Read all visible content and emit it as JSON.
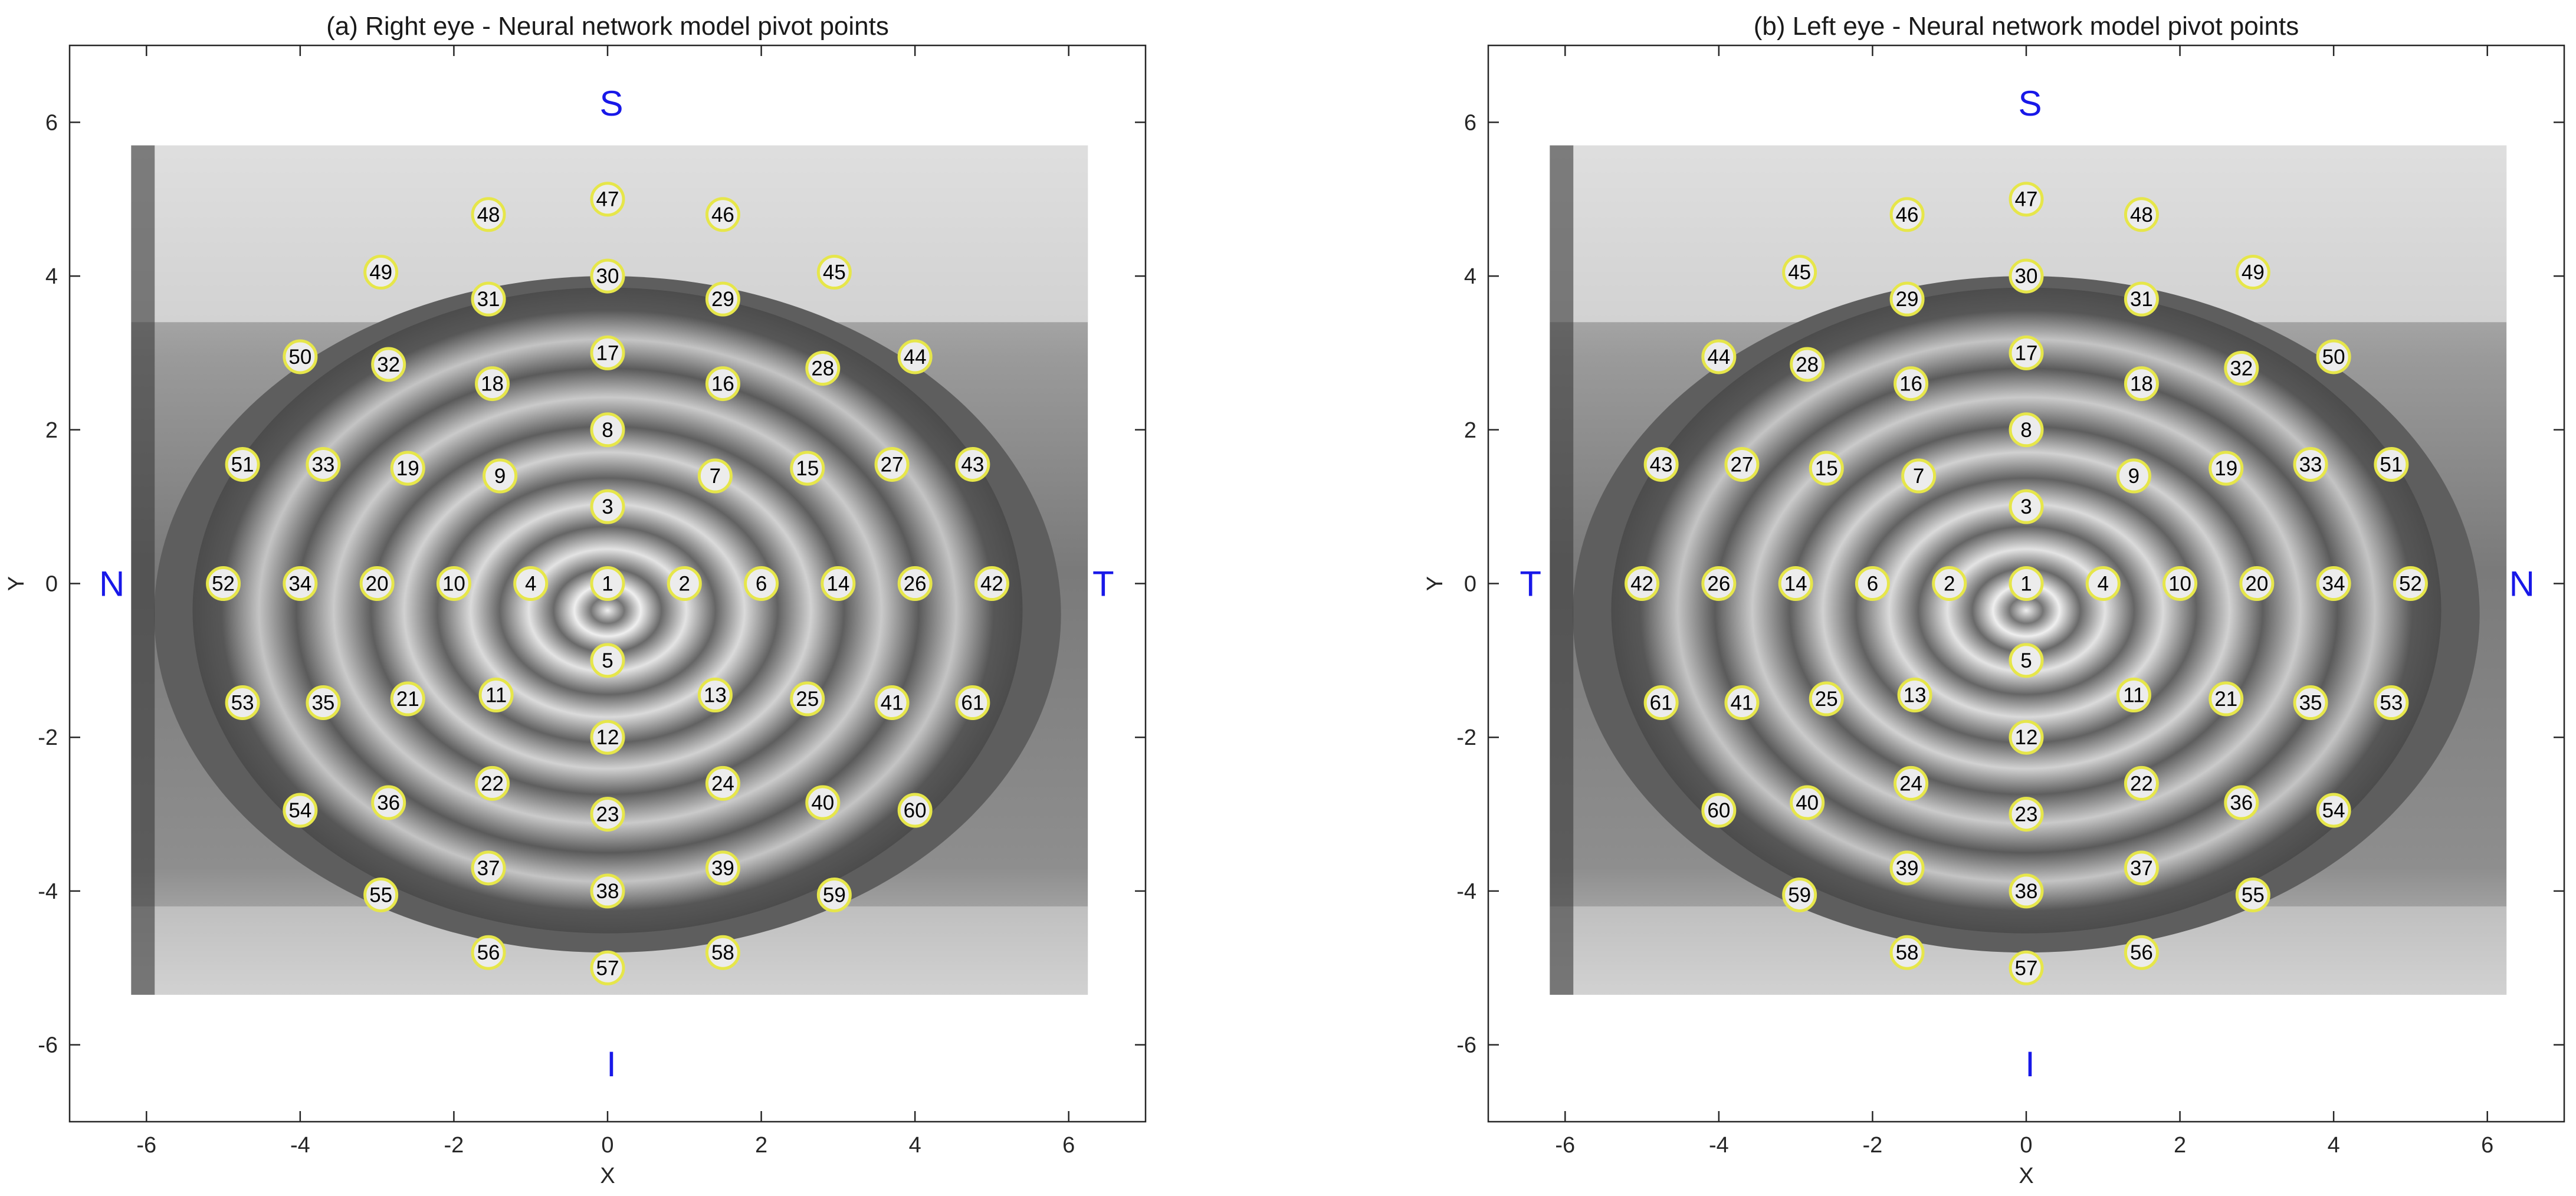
{
  "chart_data": [
    {
      "type": "scatter",
      "title": "(a) Right eye - Neural network model pivot points",
      "xlabel": "X",
      "ylabel": "Y",
      "xlim": [
        -7,
        7
      ],
      "ylim": [
        -7,
        7
      ],
      "xticks": [
        -6,
        -4,
        -2,
        0,
        2,
        4,
        6
      ],
      "yticks": [
        -6,
        -4,
        -2,
        0,
        2,
        4,
        6
      ],
      "grid": false,
      "background": "grayscale eye image with concentric placido rings",
      "marker_color": "#e6e64a",
      "orientation_labels": [
        {
          "text": "S",
          "x": 0.05,
          "y": 6.25
        },
        {
          "text": "I",
          "x": 0.05,
          "y": -6.25
        },
        {
          "text": "N",
          "x": -6.45,
          "y": 0
        },
        {
          "text": "T",
          "x": 6.45,
          "y": 0
        }
      ],
      "points": [
        {
          "label": "1",
          "x": 0,
          "y": 0
        },
        {
          "label": "2",
          "x": 1,
          "y": 0
        },
        {
          "label": "3",
          "x": 0,
          "y": 1
        },
        {
          "label": "4",
          "x": -1,
          "y": 0
        },
        {
          "label": "5",
          "x": 0,
          "y": -1
        },
        {
          "label": "6",
          "x": 2,
          "y": 0
        },
        {
          "label": "7",
          "x": 1.4,
          "y": 1.4
        },
        {
          "label": "8",
          "x": 0,
          "y": 2
        },
        {
          "label": "9",
          "x": -1.4,
          "y": 1.4
        },
        {
          "label": "10",
          "x": -2,
          "y": 0
        },
        {
          "label": "11",
          "x": -1.45,
          "y": -1.45
        },
        {
          "label": "12",
          "x": 0,
          "y": -2
        },
        {
          "label": "13",
          "x": 1.4,
          "y": -1.45
        },
        {
          "label": "14",
          "x": 3,
          "y": 0
        },
        {
          "label": "15",
          "x": 2.6,
          "y": 1.5
        },
        {
          "label": "16",
          "x": 1.5,
          "y": 2.6
        },
        {
          "label": "17",
          "x": 0,
          "y": 3
        },
        {
          "label": "18",
          "x": -1.5,
          "y": 2.6
        },
        {
          "label": "19",
          "x": -2.6,
          "y": 1.5
        },
        {
          "label": "20",
          "x": -3,
          "y": 0
        },
        {
          "label": "21",
          "x": -2.6,
          "y": -1.5
        },
        {
          "label": "22",
          "x": -1.5,
          "y": -2.6
        },
        {
          "label": "23",
          "x": 0,
          "y": -3
        },
        {
          "label": "24",
          "x": 1.5,
          "y": -2.6
        },
        {
          "label": "25",
          "x": 2.6,
          "y": -1.5
        },
        {
          "label": "26",
          "x": 4,
          "y": 0
        },
        {
          "label": "27",
          "x": 3.7,
          "y": 1.55
        },
        {
          "label": "28",
          "x": 2.8,
          "y": 2.8
        },
        {
          "label": "29",
          "x": 1.5,
          "y": 3.7
        },
        {
          "label": "30",
          "x": 0,
          "y": 4
        },
        {
          "label": "31",
          "x": -1.55,
          "y": 3.7
        },
        {
          "label": "32",
          "x": -2.85,
          "y": 2.85
        },
        {
          "label": "33",
          "x": -3.7,
          "y": 1.55
        },
        {
          "label": "34",
          "x": -4,
          "y": 0
        },
        {
          "label": "35",
          "x": -3.7,
          "y": -1.55
        },
        {
          "label": "36",
          "x": -2.85,
          "y": -2.85
        },
        {
          "label": "37",
          "x": -1.55,
          "y": -3.7
        },
        {
          "label": "38",
          "x": 0,
          "y": -4
        },
        {
          "label": "39",
          "x": 1.5,
          "y": -3.7
        },
        {
          "label": "40",
          "x": 2.8,
          "y": -2.85
        },
        {
          "label": "41",
          "x": 3.7,
          "y": -1.55
        },
        {
          "label": "42",
          "x": 5,
          "y": 0
        },
        {
          "label": "43",
          "x": 4.75,
          "y": 1.55
        },
        {
          "label": "44",
          "x": 4,
          "y": 2.95
        },
        {
          "label": "45",
          "x": 2.95,
          "y": 4.05
        },
        {
          "label": "46",
          "x": 1.5,
          "y": 4.8
        },
        {
          "label": "47",
          "x": 0,
          "y": 5
        },
        {
          "label": "48",
          "x": -1.55,
          "y": 4.8
        },
        {
          "label": "49",
          "x": -2.95,
          "y": 4.05
        },
        {
          "label": "50",
          "x": -4,
          "y": 2.95
        },
        {
          "label": "51",
          "x": -4.75,
          "y": 1.55
        },
        {
          "label": "52",
          "x": -5,
          "y": 0
        },
        {
          "label": "53",
          "x": -4.75,
          "y": -1.55
        },
        {
          "label": "54",
          "x": -4,
          "y": -2.95
        },
        {
          "label": "55",
          "x": -2.95,
          "y": -4.05
        },
        {
          "label": "56",
          "x": -1.55,
          "y": -4.8
        },
        {
          "label": "57",
          "x": 0,
          "y": -5
        },
        {
          "label": "58",
          "x": 1.5,
          "y": -4.8
        },
        {
          "label": "59",
          "x": 2.95,
          "y": -4.05
        },
        {
          "label": "60",
          "x": 4,
          "y": -2.95
        },
        {
          "label": "61",
          "x": 4.75,
          "y": -1.55
        }
      ]
    },
    {
      "type": "scatter",
      "title": "(b) Left eye - Neural network model pivot points",
      "xlabel": "X",
      "ylabel": "Y",
      "xlim": [
        -7,
        7
      ],
      "ylim": [
        -7,
        7
      ],
      "xticks": [
        -6,
        -4,
        -2,
        0,
        2,
        4,
        6
      ],
      "yticks": [
        -6,
        -4,
        -2,
        0,
        2,
        4,
        6
      ],
      "grid": false,
      "background": "grayscale eye image with concentric placido rings",
      "marker_color": "#e6e64a",
      "orientation_labels": [
        {
          "text": "S",
          "x": 0.05,
          "y": 6.25
        },
        {
          "text": "I",
          "x": 0.05,
          "y": -6.25
        },
        {
          "text": "T",
          "x": -6.45,
          "y": 0
        },
        {
          "text": "N",
          "x": 6.45,
          "y": 0
        }
      ],
      "points": [
        {
          "label": "1",
          "x": 0,
          "y": 0
        },
        {
          "label": "2",
          "x": -1,
          "y": 0
        },
        {
          "label": "3",
          "x": 0,
          "y": 1
        },
        {
          "label": "4",
          "x": 1,
          "y": 0
        },
        {
          "label": "5",
          "x": 0,
          "y": -1
        },
        {
          "label": "6",
          "x": -2,
          "y": 0
        },
        {
          "label": "7",
          "x": -1.4,
          "y": 1.4
        },
        {
          "label": "8",
          "x": 0,
          "y": 2
        },
        {
          "label": "9",
          "x": 1.4,
          "y": 1.4
        },
        {
          "label": "10",
          "x": 2,
          "y": 0
        },
        {
          "label": "11",
          "x": 1.4,
          "y": -1.45
        },
        {
          "label": "12",
          "x": 0,
          "y": -2
        },
        {
          "label": "13",
          "x": -1.45,
          "y": -1.45
        },
        {
          "label": "14",
          "x": -3,
          "y": 0
        },
        {
          "label": "15",
          "x": -2.6,
          "y": 1.5
        },
        {
          "label": "16",
          "x": -1.5,
          "y": 2.6
        },
        {
          "label": "17",
          "x": 0,
          "y": 3
        },
        {
          "label": "18",
          "x": 1.5,
          "y": 2.6
        },
        {
          "label": "19",
          "x": 2.6,
          "y": 1.5
        },
        {
          "label": "20",
          "x": 3,
          "y": 0
        },
        {
          "label": "21",
          "x": 2.6,
          "y": -1.5
        },
        {
          "label": "22",
          "x": 1.5,
          "y": -2.6
        },
        {
          "label": "23",
          "x": 0,
          "y": -3
        },
        {
          "label": "24",
          "x": -1.5,
          "y": -2.6
        },
        {
          "label": "25",
          "x": -2.6,
          "y": -1.5
        },
        {
          "label": "26",
          "x": -4,
          "y": 0
        },
        {
          "label": "27",
          "x": -3.7,
          "y": 1.55
        },
        {
          "label": "28",
          "x": -2.85,
          "y": 2.85
        },
        {
          "label": "29",
          "x": -1.55,
          "y": 3.7
        },
        {
          "label": "30",
          "x": 0,
          "y": 4
        },
        {
          "label": "31",
          "x": 1.5,
          "y": 3.7
        },
        {
          "label": "32",
          "x": 2.8,
          "y": 2.8
        },
        {
          "label": "33",
          "x": 3.7,
          "y": 1.55
        },
        {
          "label": "34",
          "x": 4,
          "y": 0
        },
        {
          "label": "35",
          "x": 3.7,
          "y": -1.55
        },
        {
          "label": "36",
          "x": 2.8,
          "y": -2.85
        },
        {
          "label": "37",
          "x": 1.5,
          "y": -3.7
        },
        {
          "label": "38",
          "x": 0,
          "y": -4
        },
        {
          "label": "39",
          "x": -1.55,
          "y": -3.7
        },
        {
          "label": "40",
          "x": -2.85,
          "y": -2.85
        },
        {
          "label": "41",
          "x": -3.7,
          "y": -1.55
        },
        {
          "label": "42",
          "x": -5,
          "y": 0
        },
        {
          "label": "43",
          "x": -4.75,
          "y": 1.55
        },
        {
          "label": "44",
          "x": -4,
          "y": 2.95
        },
        {
          "label": "45",
          "x": -2.95,
          "y": 4.05
        },
        {
          "label": "46",
          "x": -1.55,
          "y": 4.8
        },
        {
          "label": "47",
          "x": 0,
          "y": 5
        },
        {
          "label": "48",
          "x": 1.5,
          "y": 4.8
        },
        {
          "label": "49",
          "x": 2.95,
          "y": 4.05
        },
        {
          "label": "50",
          "x": 4,
          "y": 2.95
        },
        {
          "label": "51",
          "x": 4.75,
          "y": 1.55
        },
        {
          "label": "52",
          "x": 5,
          "y": 0
        },
        {
          "label": "53",
          "x": 4.75,
          "y": -1.55
        },
        {
          "label": "54",
          "x": 4,
          "y": -2.95
        },
        {
          "label": "55",
          "x": 2.95,
          "y": -4.05
        },
        {
          "label": "56",
          "x": 1.5,
          "y": -4.8
        },
        {
          "label": "57",
          "x": 0,
          "y": -5
        },
        {
          "label": "58",
          "x": -1.55,
          "y": -4.8
        },
        {
          "label": "59",
          "x": -2.95,
          "y": -4.05
        },
        {
          "label": "60",
          "x": -4,
          "y": -2.95
        },
        {
          "label": "61",
          "x": -4.75,
          "y": -1.55
        }
      ]
    }
  ]
}
